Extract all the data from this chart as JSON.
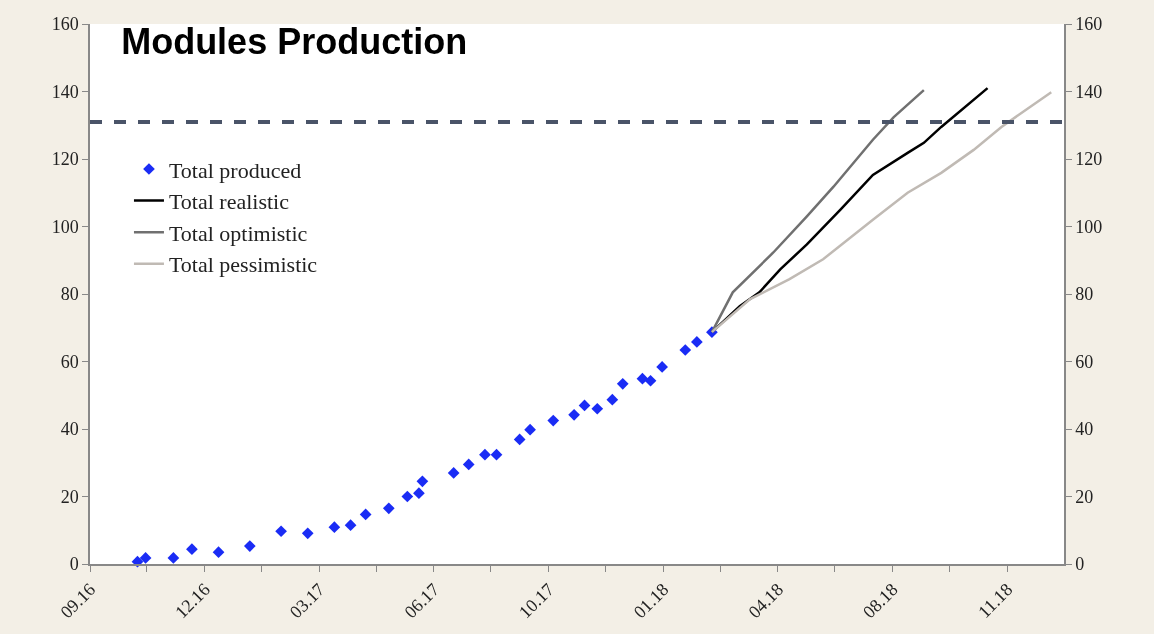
{
  "chart_data": {
    "type": "line",
    "title": "Modules Production",
    "xlim": [
      "2016-09-01",
      "2018-12-21"
    ],
    "xticks": [
      {
        "value": "2016-09-01",
        "label": "09.16"
      },
      {
        "value": "2016-10-20",
        "label": null
      },
      {
        "value": "2016-12-09",
        "label": "12.16"
      },
      {
        "value": "2017-01-27",
        "label": null
      },
      {
        "value": "2017-03-18",
        "label": "03.17"
      },
      {
        "value": "2017-05-06",
        "label": null
      },
      {
        "value": "2017-06-25",
        "label": "06.17"
      },
      {
        "value": "2017-08-13",
        "label": null
      },
      {
        "value": "2017-10-02",
        "label": "10.17"
      },
      {
        "value": "2017-11-20",
        "label": null
      },
      {
        "value": "2018-01-09",
        "label": "01.18"
      },
      {
        "value": "2018-02-27",
        "label": null
      },
      {
        "value": "2018-04-18",
        "label": "04.18"
      },
      {
        "value": "2018-06-06",
        "label": null
      },
      {
        "value": "2018-07-26",
        "label": "08.18"
      },
      {
        "value": "2018-09-13",
        "label": null
      },
      {
        "value": "2018-11-02",
        "label": "11.18"
      }
    ],
    "ylim": [
      0,
      160
    ],
    "yticks": [
      0,
      20,
      40,
      60,
      80,
      100,
      120,
      140,
      160
    ],
    "y2lim": [
      0,
      160
    ],
    "y2ticks": [
      0,
      20,
      40,
      60,
      80,
      100,
      120,
      140,
      160
    ],
    "grid": false,
    "legend": "top left",
    "ref_lines": [
      {
        "axis": "y",
        "value": 131,
        "color": "#4a5468",
        "line_style": "dashed"
      }
    ],
    "series": [
      {
        "name": "Total produced",
        "type": "scatter",
        "marker": "diamond",
        "color": "#1a2cf5",
        "x": [
          "2016-10-12",
          "2016-10-19",
          "2016-11-12",
          "2016-11-28",
          "2016-12-21",
          "2017-01-17",
          "2017-02-13",
          "2017-03-08",
          "2017-03-31",
          "2017-04-14",
          "2017-04-27",
          "2017-05-17",
          "2017-06-02",
          "2017-06-12",
          "2017-06-15",
          "2017-07-12",
          "2017-07-25",
          "2017-08-08",
          "2017-08-18",
          "2017-09-07",
          "2017-09-16",
          "2017-10-06",
          "2017-10-24",
          "2017-11-02",
          "2017-11-13",
          "2017-11-26",
          "2017-12-05",
          "2017-12-22",
          "2017-12-29",
          "2018-01-08",
          "2018-01-28",
          "2018-02-07",
          "2018-02-20"
        ],
        "values": [
          0.7,
          1.8,
          1.8,
          4.4,
          3.5,
          5.3,
          9.7,
          9.1,
          10.9,
          11.5,
          14.7,
          16.5,
          20,
          21,
          24.5,
          27,
          29.5,
          32.4,
          32.4,
          36.9,
          39.8,
          42.5,
          44.2,
          47,
          46,
          48.7,
          53.4,
          54.9,
          54.3,
          58.4,
          63.4,
          65.8,
          68.7
        ]
      },
      {
        "name": "Total realistic",
        "type": "line",
        "color": "#000000",
        "x": [
          "2018-02-20",
          "2018-03-16",
          "2018-04-02",
          "2018-04-20",
          "2018-05-13",
          "2018-06-11",
          "2018-07-09",
          "2018-08-08",
          "2018-08-22",
          "2018-09-06",
          "2018-10-16"
        ],
        "values": [
          68.7,
          76.4,
          80.5,
          87.3,
          94.7,
          105,
          115.3,
          121.8,
          124.8,
          129.5,
          141
        ]
      },
      {
        "name": "Total optimistic",
        "type": "line",
        "color": "#707070",
        "x": [
          "2018-02-20",
          "2018-03-10",
          "2018-04-14",
          "2018-05-13",
          "2018-06-05",
          "2018-07-09",
          "2018-07-27",
          "2018-08-22"
        ],
        "values": [
          68.7,
          80.5,
          92.3,
          103,
          111.8,
          125.7,
          132.4,
          140.4
        ]
      },
      {
        "name": "Total pessimistic",
        "type": "line",
        "color": "#c0bab4",
        "x": [
          "2018-02-20",
          "2018-03-25",
          "2018-04-28",
          "2018-05-27",
          "2018-07-09",
          "2018-08-08",
          "2018-09-06",
          "2018-10-04",
          "2018-10-28",
          "2018-12-10"
        ],
        "values": [
          68.7,
          78.5,
          84.4,
          90.3,
          102,
          110,
          115.9,
          122.7,
          129.5,
          139.8
        ]
      }
    ]
  }
}
